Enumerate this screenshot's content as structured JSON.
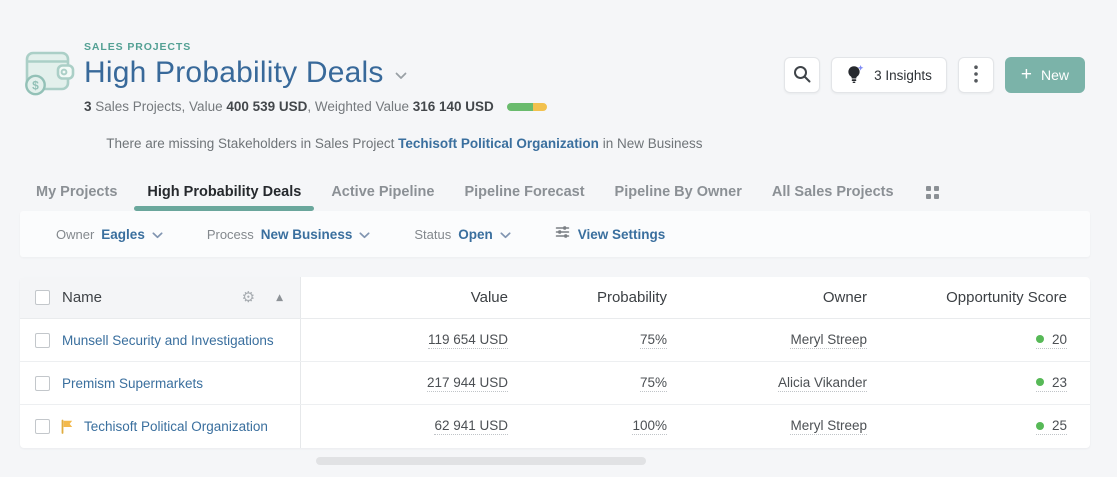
{
  "header": {
    "eyebrow": "SALES PROJECTS",
    "title": "High Probability Deals",
    "summary": {
      "count": "3",
      "text1": " Sales Projects, Value ",
      "value": "400 539 USD",
      "text2": ", Weighted Value ",
      "weighted_value": "316 140 USD"
    },
    "alert": {
      "prefix": "There are missing Stakeholders in Sales Project ",
      "link": "Techisoft Political Organization",
      "suffix": " in New Business"
    },
    "actions": {
      "insights_label": "3 Insights",
      "new_label": "New"
    }
  },
  "tabs": [
    {
      "label": "My Projects",
      "active": false
    },
    {
      "label": "High Probability Deals",
      "active": true
    },
    {
      "label": "Active Pipeline",
      "active": false
    },
    {
      "label": "Pipeline Forecast",
      "active": false
    },
    {
      "label": "Pipeline By Owner",
      "active": false
    },
    {
      "label": "All Sales Projects",
      "active": false
    }
  ],
  "filters": [
    {
      "label": "Owner",
      "value": "Eagles"
    },
    {
      "label": "Process",
      "value": "New Business"
    },
    {
      "label": "Status",
      "value": "Open"
    }
  ],
  "view_settings_label": "View Settings",
  "table": {
    "columns": [
      "Name",
      "Value",
      "Probability",
      "Owner",
      "Opportunity Score"
    ],
    "rows": [
      {
        "name": "Munsell Security and Investigations",
        "flagged": false,
        "value": "119 654 USD",
        "probability": "75%",
        "owner": "Meryl Streep",
        "score": "20"
      },
      {
        "name": "Premism Supermarkets",
        "flagged": false,
        "value": "217 944 USD",
        "probability": "75%",
        "owner": "Alicia Vikander",
        "score": "23"
      },
      {
        "name": "Techisoft Political Organization",
        "flagged": true,
        "value": "62 941 USD",
        "probability": "100%",
        "owner": "Meryl Streep",
        "score": "25"
      }
    ]
  },
  "colors": {
    "accent_teal": "#6aa79c",
    "button_teal": "#7bb3a9",
    "link_blue": "#3a6f9e",
    "title_blue": "#38699a",
    "score_dot_green": "#57b957",
    "bar_green": "#6abb6d",
    "bar_yellow": "#f2c14e",
    "flag_orange": "#f3b94b"
  }
}
